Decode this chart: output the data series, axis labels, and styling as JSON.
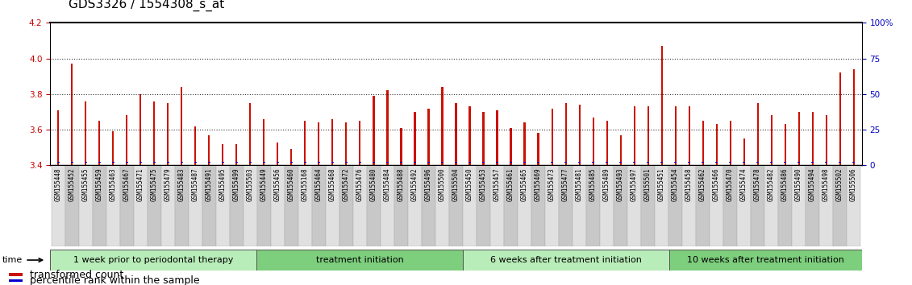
{
  "title": "GDS3326 / 1554308_s_at",
  "samples": [
    "GSM155448",
    "GSM155452",
    "GSM155455",
    "GSM155459",
    "GSM155463",
    "GSM155467",
    "GSM155471",
    "GSM155475",
    "GSM155479",
    "GSM155483",
    "GSM155487",
    "GSM155491",
    "GSM155495",
    "GSM155499",
    "GSM155503",
    "GSM155449",
    "GSM155456",
    "GSM155460",
    "GSM155168",
    "GSM155464",
    "GSM155468",
    "GSM155472",
    "GSM155476",
    "GSM155480",
    "GSM155484",
    "GSM155488",
    "GSM155492",
    "GSM155496",
    "GSM155500",
    "GSM155504",
    "GSM155450",
    "GSM155453",
    "GSM155457",
    "GSM155461",
    "GSM155465",
    "GSM155469",
    "GSM155473",
    "GSM155477",
    "GSM155481",
    "GSM155485",
    "GSM155489",
    "GSM155493",
    "GSM155497",
    "GSM155501",
    "GSM155451",
    "GSM155454",
    "GSM155458",
    "GSM155462",
    "GSM155466",
    "GSM155470",
    "GSM155474",
    "GSM155478",
    "GSM155482",
    "GSM155486",
    "GSM155490",
    "GSM155494",
    "GSM155498",
    "GSM155502",
    "GSM155506"
  ],
  "red_values": [
    3.71,
    3.97,
    3.76,
    3.65,
    3.59,
    3.68,
    3.8,
    3.76,
    3.75,
    3.84,
    3.62,
    3.57,
    3.52,
    3.52,
    3.75,
    3.66,
    3.53,
    3.49,
    3.65,
    3.64,
    3.66,
    3.64,
    3.65,
    3.79,
    3.82,
    3.61,
    3.7,
    3.72,
    3.84,
    3.75,
    3.73,
    3.7,
    3.71,
    3.61,
    3.64,
    3.58,
    3.72,
    3.75,
    3.74,
    3.67,
    3.65,
    3.57,
    3.73,
    3.73,
    4.07,
    3.73,
    3.73,
    3.65,
    3.63,
    3.65,
    3.55,
    3.75,
    3.68,
    3.63,
    3.7,
    3.7,
    3.68,
    3.92,
    3.94
  ],
  "blue_percentiles": [
    2,
    2,
    2,
    2,
    2,
    2,
    2,
    2,
    2,
    2,
    2,
    2,
    2,
    2,
    2,
    2,
    2,
    2,
    2,
    2,
    2,
    2,
    2,
    2,
    2,
    2,
    2,
    2,
    2,
    2,
    2,
    2,
    2,
    2,
    2,
    2,
    2,
    2,
    2,
    2,
    2,
    2,
    2,
    2,
    2,
    2,
    2,
    2,
    2,
    2,
    2,
    2,
    2,
    2,
    2,
    2,
    2,
    2,
    2
  ],
  "groups": [
    {
      "label": "1 week prior to periodontal therapy",
      "start": 0,
      "end": 15
    },
    {
      "label": "treatment initiation",
      "start": 15,
      "end": 30
    },
    {
      "label": "6 weeks after treatment initiation",
      "start": 30,
      "end": 45
    },
    {
      "label": "10 weeks after treatment initiation",
      "start": 45,
      "end": 59
    }
  ],
  "group_colors": [
    "#b8ecb8",
    "#7dce7d",
    "#b8ecb8",
    "#7dce7d"
  ],
  "ylim_left": [
    3.4,
    4.2
  ],
  "ylim_right": [
    0,
    100
  ],
  "yticks_left": [
    3.4,
    3.6,
    3.8,
    4.0,
    4.2
  ],
  "yticks_right": [
    0,
    25,
    50,
    75,
    100
  ],
  "ytick_labels_right": [
    "0",
    "25",
    "50",
    "75",
    "100%"
  ],
  "bar_base": 3.4,
  "dotted_lines": [
    4.0,
    3.8,
    3.6
  ],
  "left_tick_color": "#cc0000",
  "right_tick_color": "#0000bb",
  "bar_color_red": "#cc1100",
  "bar_color_blue": "#0000cc",
  "title_fontsize": 11,
  "tick_fontsize": 7.5,
  "legend_fontsize": 9,
  "xtick_bg_light": "#e0e0e0",
  "xtick_bg_dark": "#c8c8c8"
}
